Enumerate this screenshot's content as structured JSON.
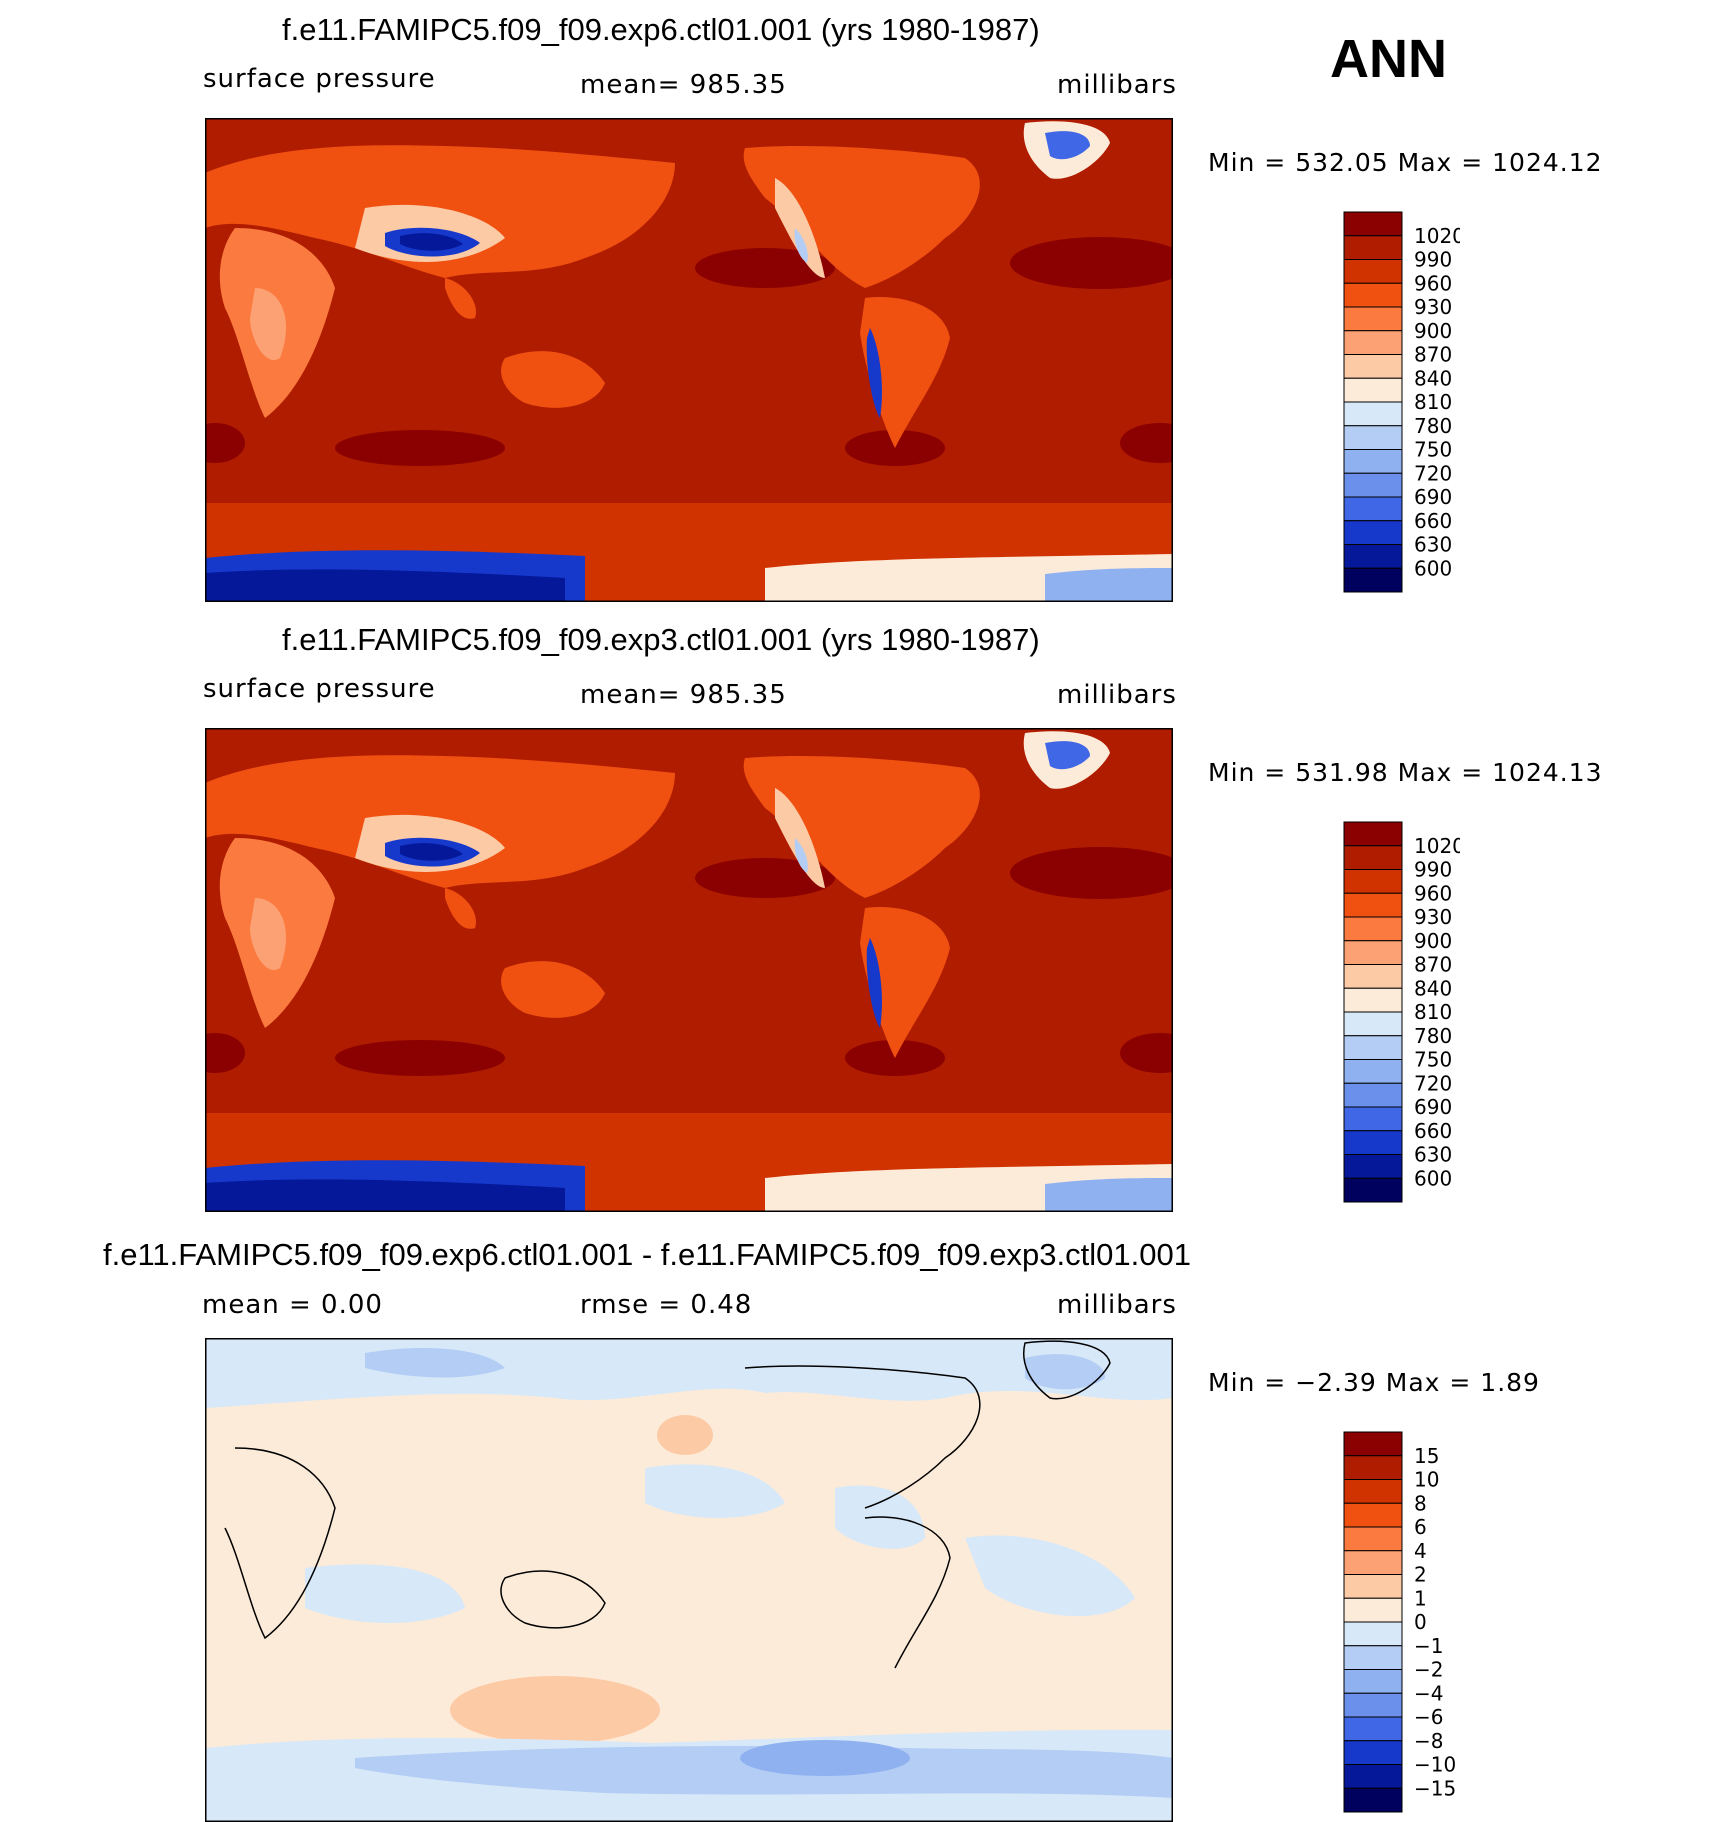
{
  "season": "ANN",
  "panels": [
    {
      "title": "f.e11.FAMIPC5.f09_f09.exp6.ctl01.001 (yrs 1980-1987)",
      "left_label": "surface pressure",
      "center_label": "mean= 985.35",
      "units": "millibars",
      "minmax": "Min  =  532.05  Max  =  1024.12",
      "colorbar": {
        "labels": [
          "1020",
          "990",
          "960",
          "930",
          "900",
          "870",
          "840",
          "810",
          "780",
          "750",
          "720",
          "690",
          "660",
          "630",
          "600"
        ],
        "colors": [
          "#8b0000",
          "#b01c00",
          "#d13300",
          "#f05010",
          "#fb7a3f",
          "#fca173",
          "#fdcaa6",
          "#fdebd9",
          "#d7e8f8",
          "#b3cdf4",
          "#8fb1f0",
          "#6a90ec",
          "#3f67e6",
          "#1639cc",
          "#041899",
          "#00005e"
        ]
      }
    },
    {
      "title": "f.e11.FAMIPC5.f09_f09.exp3.ctl01.001 (yrs 1980-1987)",
      "left_label": "surface pressure",
      "center_label": "mean= 985.35",
      "units": "millibars",
      "minmax": "Min  =  531.98  Max  =  1024.13",
      "colorbar": {
        "labels": [
          "1020",
          "990",
          "960",
          "930",
          "900",
          "870",
          "840",
          "810",
          "780",
          "750",
          "720",
          "690",
          "660",
          "630",
          "600"
        ],
        "colors": [
          "#8b0000",
          "#b01c00",
          "#d13300",
          "#f05010",
          "#fb7a3f",
          "#fca173",
          "#fdcaa6",
          "#fdebd9",
          "#d7e8f8",
          "#b3cdf4",
          "#8fb1f0",
          "#6a90ec",
          "#3f67e6",
          "#1639cc",
          "#041899",
          "#00005e"
        ]
      }
    },
    {
      "title": "f.e11.FAMIPC5.f09_f09.exp6.ctl01.001 - f.e11.FAMIPC5.f09_f09.exp3.ctl01.001",
      "left_label": "mean  =     0.00",
      "center_label": "rmse  =     0.48",
      "units": "millibars",
      "minmax": "Min  =    −2.39  Max  =      1.89",
      "colorbar": {
        "labels": [
          "15",
          "10",
          "8",
          "6",
          "4",
          "2",
          "1",
          "0",
          "−1",
          "−2",
          "−4",
          "−6",
          "−8",
          "−10",
          "−15"
        ],
        "colors": [
          "#8b0000",
          "#b01c00",
          "#d13300",
          "#f05010",
          "#fb7a3f",
          "#fca173",
          "#fdcaa6",
          "#fdebd9",
          "#d7e8f8",
          "#b3cdf4",
          "#8fb1f0",
          "#6a90ec",
          "#3f67e6",
          "#1639cc",
          "#041899",
          "#00005e"
        ]
      }
    }
  ],
  "chart_data": [
    {
      "type": "heatmap",
      "title": "f.e11.FAMIPC5.f09_f09.exp6.ctl01.001 (yrs 1980-1987)",
      "variable": "surface pressure",
      "units": "millibars",
      "mean": 985.35,
      "min": 532.05,
      "max": 1024.12,
      "levels": [
        600,
        630,
        660,
        690,
        720,
        750,
        780,
        810,
        840,
        870,
        900,
        930,
        960,
        990,
        1020
      ]
    },
    {
      "type": "heatmap",
      "title": "f.e11.FAMIPC5.f09_f09.exp3.ctl01.001 (yrs 1980-1987)",
      "variable": "surface pressure",
      "units": "millibars",
      "mean": 985.35,
      "min": 531.98,
      "max": 1024.13,
      "levels": [
        600,
        630,
        660,
        690,
        720,
        750,
        780,
        810,
        840,
        870,
        900,
        930,
        960,
        990,
        1020
      ]
    },
    {
      "type": "heatmap",
      "title": "f.e11.FAMIPC5.f09_f09.exp6.ctl01.001 - f.e11.FAMIPC5.f09_f09.exp3.ctl01.001",
      "units": "millibars",
      "mean": 0.0,
      "rmse": 0.48,
      "min": -2.39,
      "max": 1.89,
      "levels": [
        -15,
        -10,
        -8,
        -6,
        -4,
        -2,
        -1,
        0,
        1,
        2,
        4,
        6,
        8,
        10,
        15
      ]
    }
  ]
}
